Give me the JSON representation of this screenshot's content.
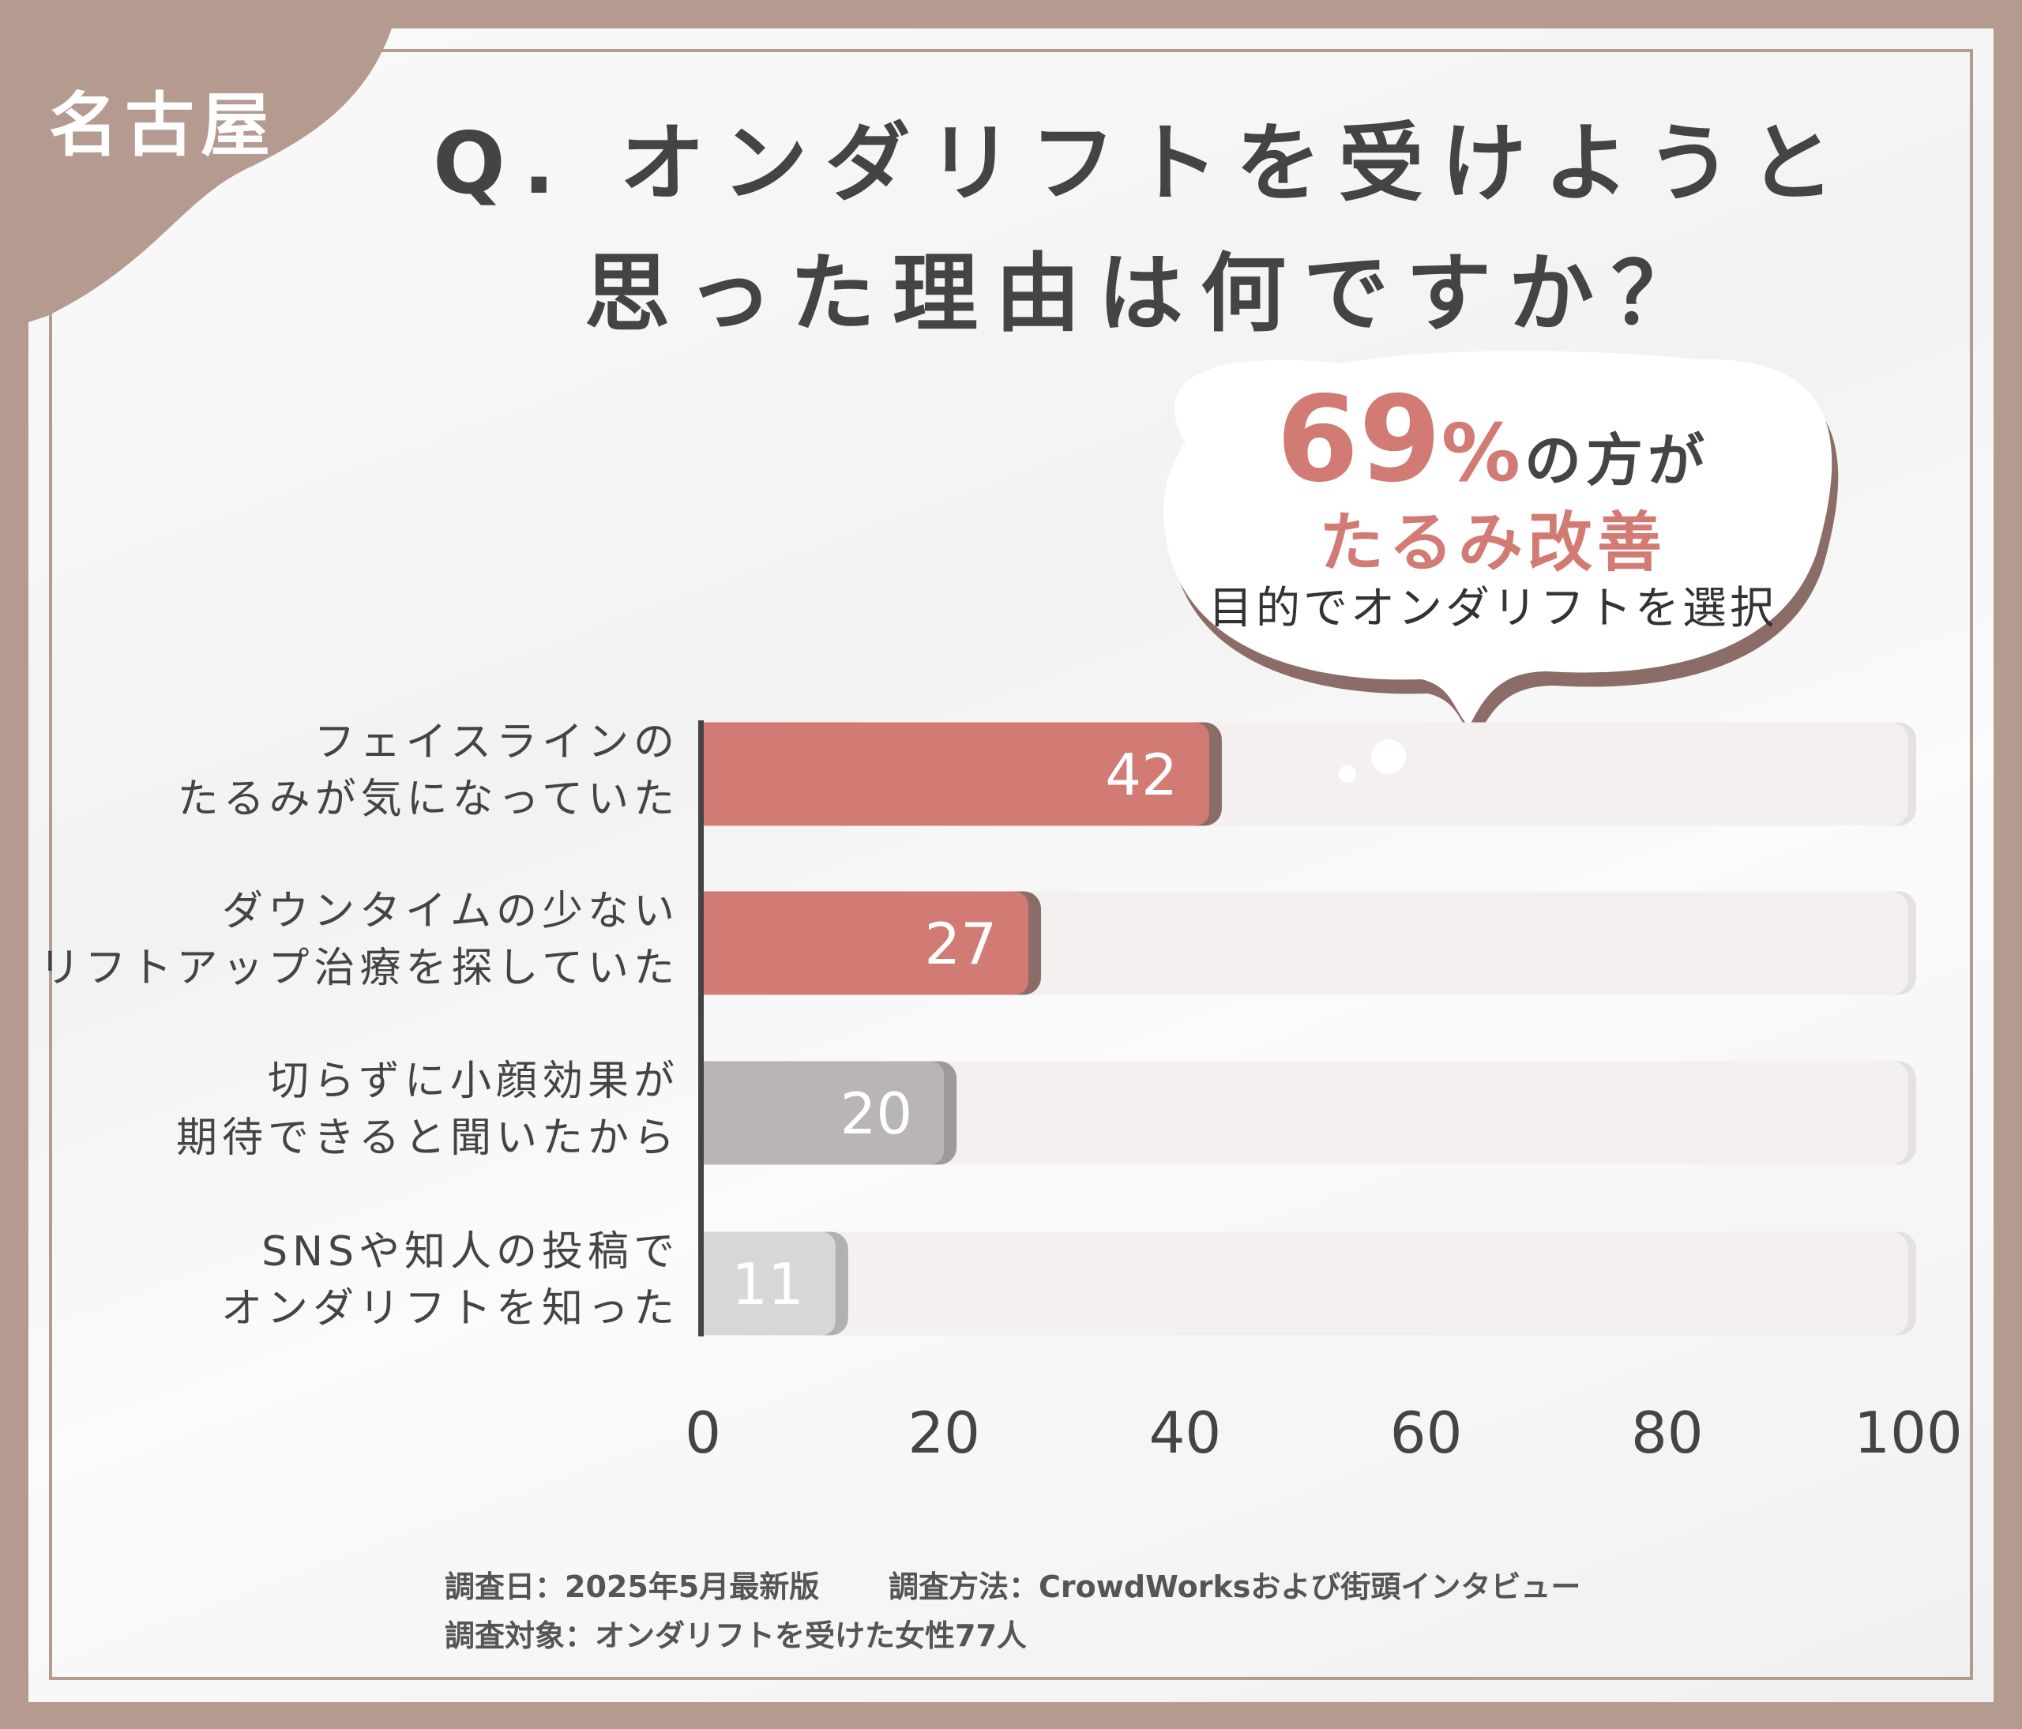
{
  "region_badge": "名古屋",
  "title": {
    "line1": "Q. オンダリフトを受けようと",
    "line2": "思った理由は何ですか？"
  },
  "callout": {
    "percent": "69",
    "percent_sign": "%",
    "of_people": "の方が",
    "highlight": "たるみ改善",
    "purpose": "目的でオンダリフトを選択"
  },
  "colors": {
    "background": "#b59a90",
    "accent": "#d27b75",
    "accent_shadow": "#8b6c66",
    "gray": "#b9b5b4",
    "light_gray": "#d8d6d6",
    "track": "#f3f0ef",
    "text": "#444444"
  },
  "chart_data": {
    "type": "bar",
    "orientation": "horizontal",
    "categories": [
      [
        "フェイスラインの",
        "たるみが気になっていた"
      ],
      [
        "ダウンタイムの少ない",
        "リフトアップ治療を探していた"
      ],
      [
        "切らずに小顔効果が",
        "期待できると聞いたから"
      ],
      [
        "SNSや知人の投稿で",
        "オンダリフトを知った"
      ]
    ],
    "values": [
      42,
      27,
      20,
      11
    ],
    "value_labels": [
      "42",
      "27",
      "20",
      "11"
    ],
    "bar_colors": [
      "#d27b75",
      "#d27b75",
      "#b9b5b4",
      "#d8d6d6"
    ],
    "xlim": [
      0,
      100
    ],
    "xticks": [
      "0",
      "20",
      "40",
      "60",
      "80",
      "100"
    ],
    "grid": false
  },
  "footer": {
    "date": "調査日：2025年5月最新版",
    "method": "調査方法：CrowdWorksおよび街頭インタビュー",
    "target": "調査対象：オンダリフトを受けた女性77人"
  }
}
